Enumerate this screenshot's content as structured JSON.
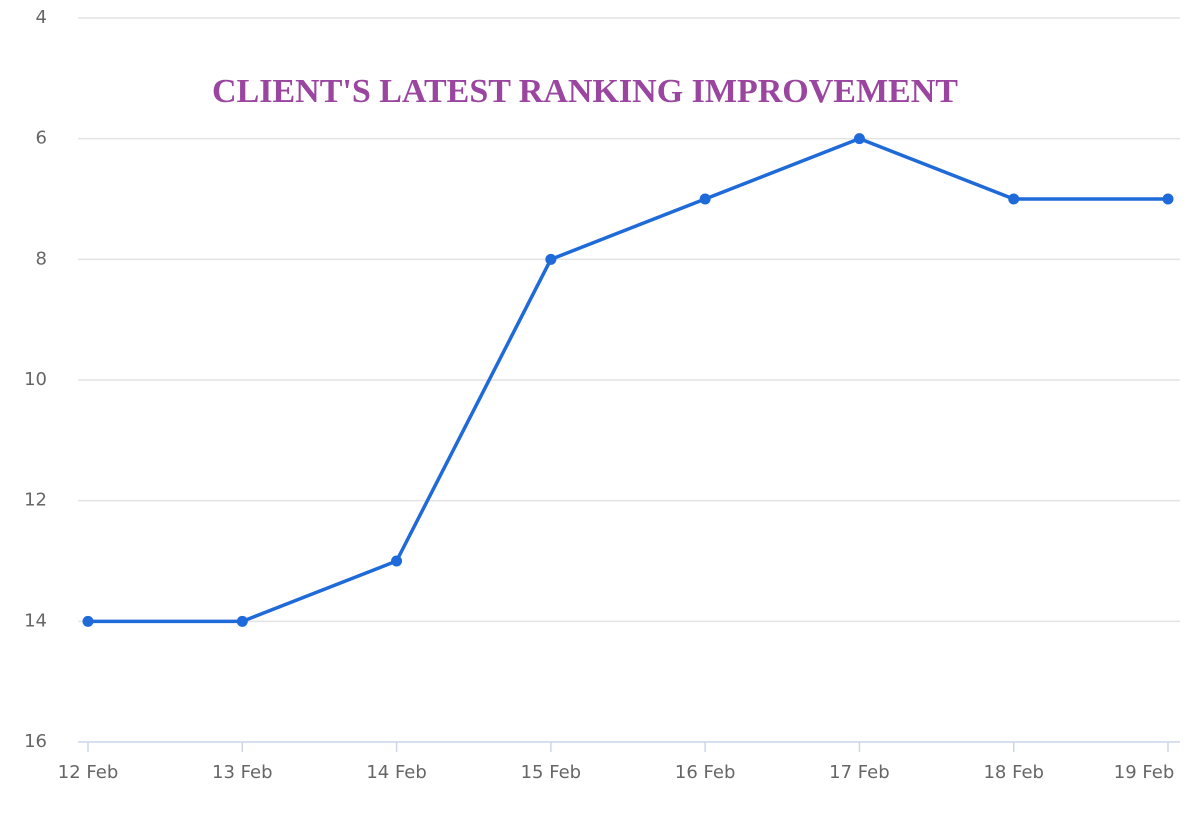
{
  "chart_data": {
    "type": "line",
    "title": "CLIENT'S LATEST RANKING IMPROVEMENT",
    "categories": [
      "12 Feb",
      "13 Feb",
      "14 Feb",
      "15 Feb",
      "16 Feb",
      "17 Feb",
      "18 Feb",
      "19 Feb"
    ],
    "values": [
      14,
      14,
      13,
      8,
      7,
      6,
      7,
      7
    ],
    "color": "#1f6ad9",
    "ylim": [
      4,
      16
    ],
    "y_inverted": true,
    "yticks": [
      4,
      6,
      8,
      10,
      12,
      14,
      16
    ],
    "grid": true
  }
}
